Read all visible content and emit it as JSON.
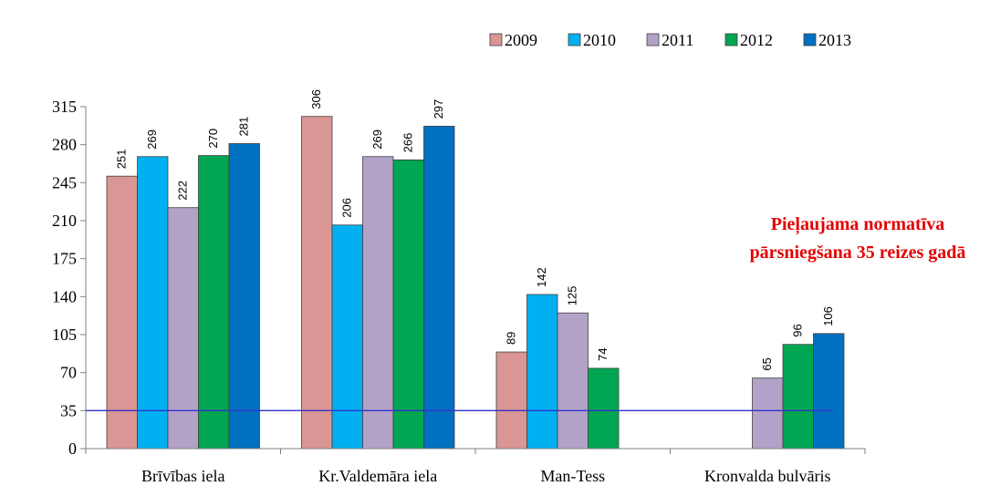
{
  "chart_data": {
    "type": "bar",
    "title": "",
    "xlabel": "",
    "ylabel": "",
    "categories": [
      "Brīvības iela",
      "Kr.Valdemāra iela",
      "Man-Tess",
      "Kronvalda bulvāris"
    ],
    "series": [
      {
        "name": "2009",
        "color": "#d99694",
        "values": [
          251,
          306,
          89,
          null
        ]
      },
      {
        "name": "2010",
        "color": "#00b0f0",
        "values": [
          269,
          206,
          142,
          null
        ]
      },
      {
        "name": "2011",
        "color": "#b3a2c7",
        "values": [
          222,
          269,
          125,
          65
        ]
      },
      {
        "name": "2012",
        "color": "#00a651",
        "values": [
          270,
          266,
          74,
          96
        ]
      },
      {
        "name": "2013",
        "color": "#0070c0",
        "values": [
          281,
          297,
          null,
          106
        ]
      }
    ],
    "ylim": [
      0,
      315
    ],
    "yticks": [
      0,
      35,
      70,
      105,
      140,
      175,
      210,
      245,
      280,
      315
    ],
    "threshold": {
      "value": 35,
      "color": "#3333cc"
    },
    "annotation": {
      "line1": "Pieļaujama normatīva",
      "line2": "pārsniegšana 35 reizes gadā",
      "color": "#e30000"
    },
    "legend_position": "top-right",
    "grid": false
  }
}
